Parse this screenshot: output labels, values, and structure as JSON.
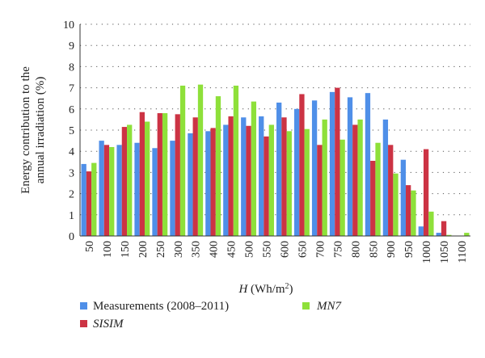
{
  "chart_data": {
    "type": "bar",
    "title": "",
    "xlabel_italic": "H",
    "xlabel_unit": " (Wh/m",
    "xlabel_sup": "2",
    "xlabel_close": ")",
    "ylabel_line1": "Energy contribution to the",
    "ylabel_line2": "annual irradiation (%)",
    "ylim": [
      0,
      10
    ],
    "yticks": [
      "0",
      "1",
      "2",
      "3",
      "4",
      "5",
      "6",
      "7",
      "8",
      "9",
      "10"
    ],
    "grid": "horizontal dotted",
    "legend_position": "bottom",
    "categories": [
      "50",
      "100",
      "150",
      "200",
      "250",
      "300",
      "350",
      "400",
      "450",
      "500",
      "550",
      "600",
      "650",
      "700",
      "750",
      "800",
      "850",
      "900",
      "950",
      "1000",
      "1050",
      "1100"
    ],
    "series": [
      {
        "name": "Measurements (2008–2011)",
        "italic": false,
        "color": "#4f8fe8",
        "values": [
          3.4,
          4.5,
          4.3,
          4.4,
          4.15,
          4.5,
          4.85,
          4.95,
          5.25,
          5.6,
          5.65,
          6.3,
          6.0,
          6.4,
          6.8,
          6.55,
          6.75,
          5.5,
          3.6,
          0.45,
          0.15,
          0.0
        ]
      },
      {
        "name": "SISIM",
        "italic": true,
        "color": "#cc3344",
        "values": [
          3.05,
          4.3,
          5.15,
          5.85,
          5.8,
          5.75,
          5.6,
          5.1,
          5.65,
          5.2,
          4.7,
          5.6,
          6.7,
          4.3,
          7.0,
          5.25,
          3.55,
          4.3,
          2.4,
          4.1,
          0.7,
          0.0
        ]
      },
      {
        "name": "MN7",
        "italic": true,
        "color": "#8ee03a",
        "values": [
          3.45,
          4.2,
          5.25,
          5.4,
          5.8,
          7.1,
          7.15,
          6.6,
          7.1,
          6.35,
          5.25,
          4.95,
          5.05,
          5.5,
          4.55,
          5.5,
          4.4,
          2.95,
          2.15,
          1.15,
          0.05,
          0.15
        ]
      }
    ]
  }
}
